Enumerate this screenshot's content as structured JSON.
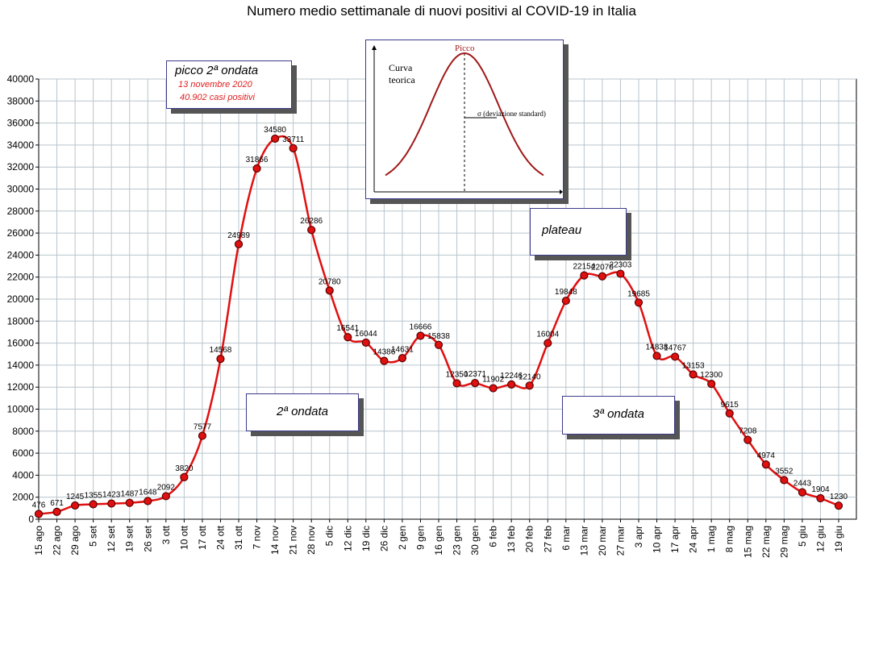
{
  "title": "Numero medio settimanale di nuovi positivi al COVID-19 in Italia",
  "annotations": {
    "peak": {
      "line1": "picco 2ª ondata",
      "line2": "13 novembre 2020",
      "line3": "40.902 casi positivi"
    },
    "plateau": "plateau",
    "wave2": "2ª ondata",
    "wave3": "3ª ondata"
  },
  "inset": {
    "curve_label_1": "Curva",
    "curve_label_2": "teorica",
    "peak_label": "Picco",
    "sigma_label": "σ (deviazione standard)"
  },
  "colors": {
    "line": "#e01010",
    "marker_fill": "#e01010",
    "marker_stroke": "#5a0000",
    "grid": "#b8c4cc",
    "arrow": "#e02020",
    "inset_curve": "#a01818"
  },
  "chart_data": {
    "type": "line",
    "title": "Numero medio settimanale di nuovi positivi al COVID-19 in Italia",
    "xlabel": "",
    "ylabel": "",
    "ylim": [
      0,
      40000
    ],
    "yticks": [
      0,
      2000,
      4000,
      6000,
      8000,
      10000,
      12000,
      14000,
      16000,
      18000,
      20000,
      22000,
      24000,
      26000,
      28000,
      30000,
      32000,
      34000,
      36000,
      38000,
      40000
    ],
    "grid": true,
    "categories": [
      "15 ago",
      "22 ago",
      "29 ago",
      "5 set",
      "12 set",
      "19 set",
      "26 set",
      "3 ott",
      "10 ott",
      "17 ott",
      "24 ott",
      "31 ott",
      "7 nov",
      "14 nov",
      "21 nov",
      "28 nov",
      "5 dic",
      "12 dic",
      "19 dic",
      "26 dic",
      "2 gen",
      "9 gen",
      "16 gen",
      "23 gen",
      "30 gen",
      "6 feb",
      "13 feb",
      "20 feb",
      "27 feb",
      "6 mar",
      "13 mar",
      "20 mar",
      "27 mar",
      "3 apr",
      "10 apr",
      "17 apr",
      "24 apr",
      "1 mag",
      "8 mag",
      "15 mag",
      "22 mag",
      "29 mag",
      "5 giu",
      "12 giu",
      "19 giu"
    ],
    "series": [
      {
        "values": [
          476,
          671,
          1245,
          1355,
          1423,
          1487,
          1648,
          2092,
          3820,
          7577,
          14568,
          24989,
          31866,
          34580,
          33711,
          26286,
          20780,
          16541,
          16044,
          14386,
          14631,
          16666,
          15838,
          12350,
          12371,
          11902,
          12246,
          12140,
          16004,
          19848,
          22154,
          22070,
          22303,
          19685,
          14838,
          14767,
          13153,
          12300,
          9615,
          7208,
          4974,
          3552,
          2443,
          1904,
          1230
        ]
      }
    ]
  }
}
